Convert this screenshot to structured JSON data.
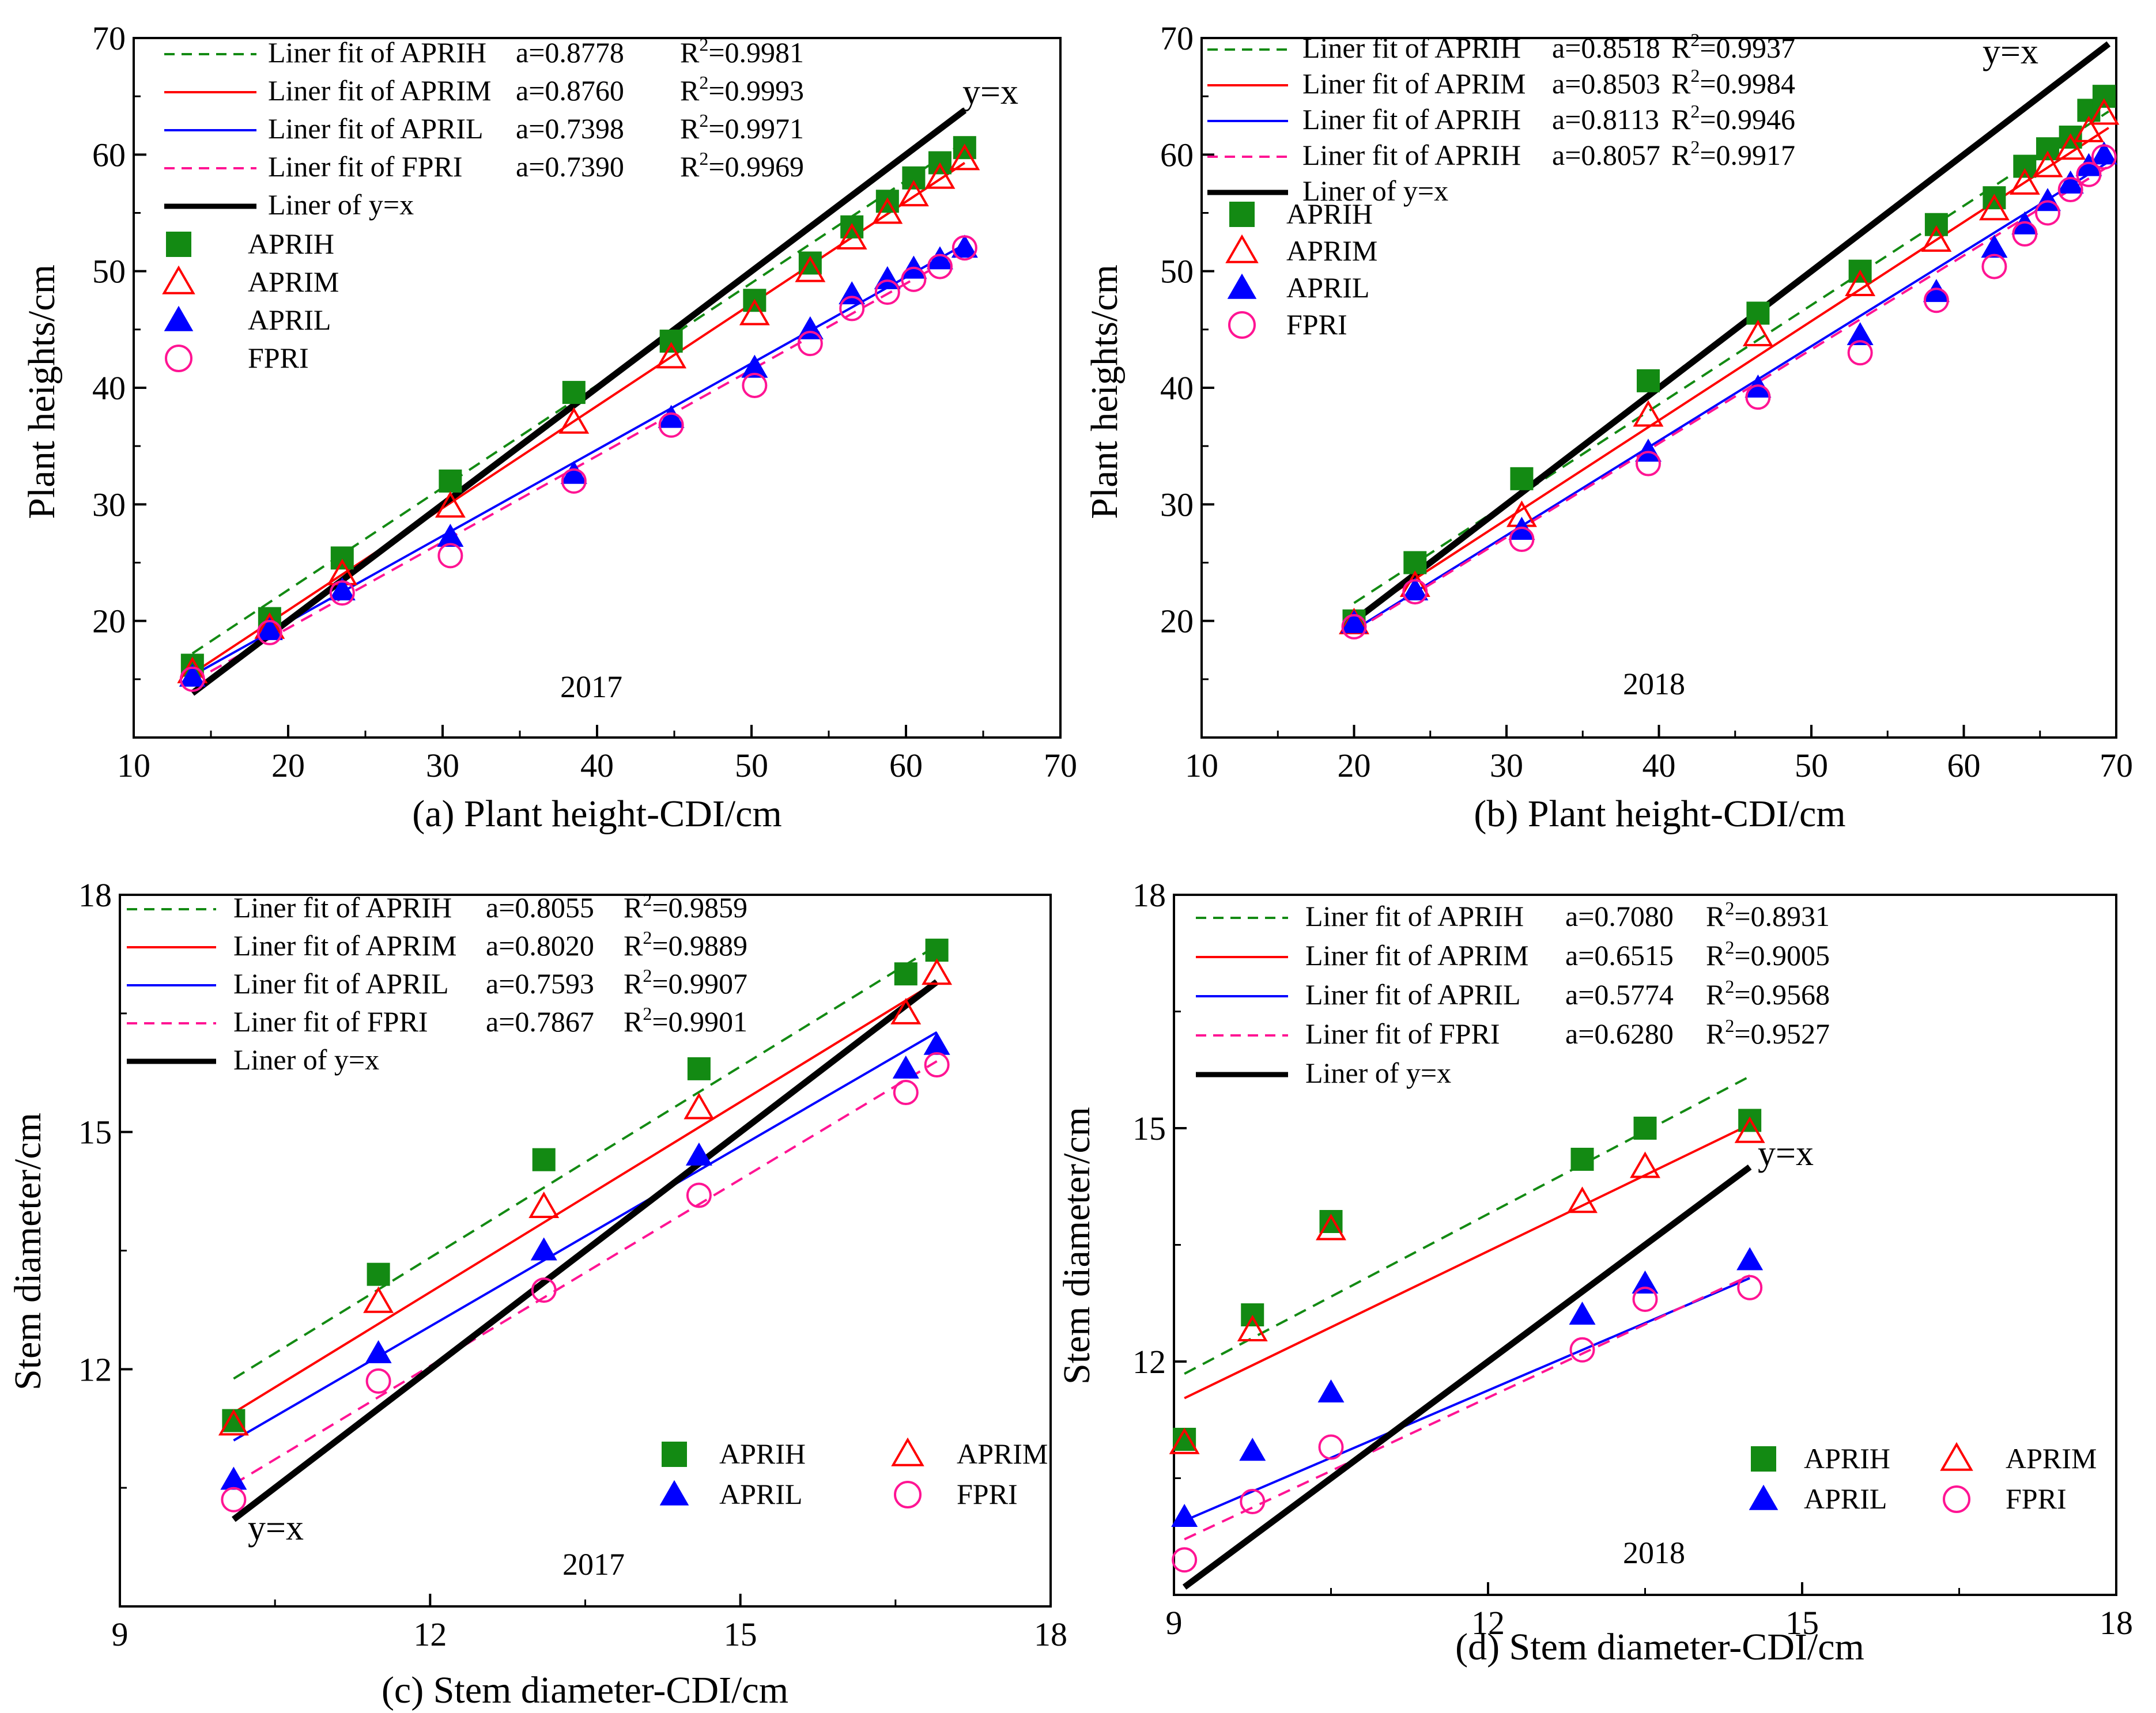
{
  "chart_data": [
    {
      "type": "scatter",
      "panel": "a",
      "caption": "(a) Plant height-CDI/cm",
      "ylabel": "Plant heights/cm",
      "year": "2017",
      "identity_label": "y=x",
      "xlim": [
        10,
        70
      ],
      "ylim": [
        10,
        70
      ],
      "xticks": [
        "10",
        "20",
        "30",
        "40",
        "50",
        "60",
        "70"
      ],
      "yticks": [
        "20",
        "30",
        "40",
        "50",
        "60",
        "70"
      ],
      "x": [
        13.8,
        18.8,
        23.5,
        30.5,
        38.5,
        44.8,
        50.2,
        53.8,
        56.5,
        58.8,
        60.5,
        62.2,
        63.8
      ],
      "series": [
        {
          "name": "APRIH",
          "marker": "square",
          "color": "#138a13",
          "values": [
            16.2,
            20.2,
            25.4,
            32.0,
            39.6,
            44.0,
            47.5,
            50.7,
            53.8,
            56.0,
            58.0,
            59.3,
            60.6
          ]
        },
        {
          "name": "APRIM",
          "marker": "triangle-open",
          "color": "#ff0000",
          "values": [
            15.6,
            19.4,
            24.0,
            29.8,
            37.0,
            42.6,
            46.3,
            50.0,
            52.8,
            55.0,
            56.5,
            58.0,
            59.6
          ]
        },
        {
          "name": "APRIL",
          "marker": "triangle",
          "color": "#0000ff",
          "values": [
            15.2,
            19.2,
            22.6,
            27.2,
            32.6,
            37.4,
            41.7,
            45.0,
            48.0,
            49.3,
            50.2,
            51.0,
            52.0
          ]
        },
        {
          "name": "FPRI",
          "marker": "circle-open",
          "color": "#ff1493",
          "values": [
            15.0,
            19.0,
            22.4,
            25.6,
            32.0,
            36.8,
            40.2,
            43.8,
            46.8,
            48.2,
            49.3,
            50.4,
            52.0
          ]
        }
      ],
      "fits": [
        {
          "label": "Liner fit of APRIH",
          "a": "a=0.8778",
          "r2_value": "=0.9981",
          "slope": 0.8778,
          "intercept": 5.1,
          "x_range": [
            13.8,
            63.8
          ],
          "color": "#138a13",
          "dash": "dash",
          "stroke_style": "thin"
        },
        {
          "label": "Liner fit of APRIM",
          "a": "a=0.8760",
          "r2_value": "=0.9993",
          "slope": 0.876,
          "intercept": 3.4,
          "x_range": [
            13.8,
            63.8
          ],
          "color": "#ff0000",
          "dash": "solid",
          "stroke_style": "thin"
        },
        {
          "label": "Liner fit of APRIL",
          "a": "a=0.7398",
          "r2_value": "=0.9971",
          "slope": 0.7398,
          "intercept": 5.1,
          "x_range": [
            13.8,
            63.8
          ],
          "color": "#0000ff",
          "dash": "solid",
          "stroke_style": "thin"
        },
        {
          "label": "Liner fit of FPRI",
          "a": "a=0.7390",
          "r2_value": "=0.9969",
          "slope": 0.739,
          "intercept": 4.6,
          "x_range": [
            13.8,
            63.8
          ],
          "color": "#ff1493",
          "dash": "dash",
          "stroke_style": "thin"
        },
        {
          "label": "Liner of y=x",
          "a": "",
          "r2_value": "",
          "slope": 1,
          "intercept": 0,
          "x_range": [
            13.8,
            63.8
          ],
          "color": "#000000",
          "dash": "solid",
          "stroke_style": "thick"
        }
      ],
      "legend_layout": "stacked"
    },
    {
      "type": "scatter",
      "panel": "b",
      "caption": "(b) Plant height-CDI/cm",
      "ylabel": "Plant heights/cm",
      "year": "2018",
      "identity_label": "y=x",
      "xlim": [
        10,
        70
      ],
      "ylim": [
        10,
        70
      ],
      "xticks": [
        "10",
        "20",
        "30",
        "40",
        "50",
        "60",
        "70"
      ],
      "yticks": [
        "20",
        "30",
        "40",
        "50",
        "60",
        "70"
      ],
      "x": [
        20.0,
        24.0,
        31.0,
        39.3,
        46.5,
        53.2,
        58.2,
        62.0,
        64.0,
        65.5,
        67.0,
        68.2,
        69.2
      ],
      "series": [
        {
          "name": "APRIH",
          "marker": "square",
          "color": "#138a13",
          "values": [
            20.0,
            25.0,
            32.2,
            40.6,
            46.4,
            50.0,
            54.0,
            56.3,
            59.0,
            60.5,
            61.5,
            63.8,
            65.0
          ]
        },
        {
          "name": "APRIM",
          "marker": "triangle-open",
          "color": "#ff0000",
          "values": [
            19.8,
            23.0,
            29.0,
            37.6,
            44.5,
            48.8,
            52.6,
            55.3,
            57.5,
            59.0,
            60.5,
            62.0,
            63.5
          ]
        },
        {
          "name": "APRIL",
          "marker": "triangle",
          "color": "#0000ff",
          "values": [
            19.8,
            22.6,
            27.8,
            34.5,
            40.0,
            44.5,
            48.2,
            52.0,
            54.0,
            56.0,
            57.5,
            59.0,
            60.0
          ]
        },
        {
          "name": "FPRI",
          "marker": "circle-open",
          "color": "#ff1493",
          "values": [
            19.5,
            22.5,
            27.0,
            33.5,
            39.2,
            43.0,
            47.5,
            50.4,
            53.2,
            55.0,
            57.0,
            58.3,
            59.8
          ]
        }
      ],
      "fits": [
        {
          "label": "Liner fit of APRIH",
          "a": "a=0.8518",
          "r2_value": "=0.9937",
          "slope": 0.8518,
          "intercept": 4.5,
          "x_range": [
            20,
            69.5
          ],
          "color": "#138a13",
          "dash": "dash",
          "stroke_style": "thin"
        },
        {
          "label": "Liner fit of APRIM",
          "a": "a=0.8503",
          "r2_value": "=0.9984",
          "slope": 0.8503,
          "intercept": 3.2,
          "x_range": [
            20,
            69.5
          ],
          "color": "#ff0000",
          "dash": "solid",
          "stroke_style": "thin"
        },
        {
          "label": "Liner fit of APRIH",
          "a": "a=0.8113",
          "r2_value": "=0.9946",
          "slope": 0.8113,
          "intercept": 3.0,
          "x_range": [
            20,
            69.5
          ],
          "color": "#0000ff",
          "dash": "solid",
          "stroke_style": "thin"
        },
        {
          "label": "Liner fit of APRIH",
          "a": "a=0.8057",
          "r2_value": "=0.9917",
          "slope": 0.8057,
          "intercept": 3.0,
          "x_range": [
            20,
            69.5
          ],
          "color": "#ff1493",
          "dash": "dash",
          "stroke_style": "thin"
        },
        {
          "label": "Liner of y=x",
          "a": "",
          "r2_value": "",
          "slope": 1,
          "intercept": 0,
          "x_range": [
            20.5,
            69.5
          ],
          "color": "#000000",
          "dash": "solid",
          "stroke_style": "thick"
        }
      ],
      "legend_layout": "stacked"
    },
    {
      "type": "scatter",
      "panel": "c",
      "caption": "(c) Stem diameter-CDI/cm",
      "ylabel": "Stem diameter/cm",
      "year": "2017",
      "identity_label": "y=x",
      "xlim": [
        9,
        18
      ],
      "ylim": [
        9,
        18
      ],
      "xticks": [
        "9",
        "12",
        "15",
        "18"
      ],
      "yticks": [
        "12",
        "15",
        "18"
      ],
      "x": [
        10.1,
        11.5,
        13.1,
        14.6,
        16.6,
        16.9
      ],
      "series": [
        {
          "name": "APRIH",
          "marker": "square",
          "color": "#138a13",
          "values": [
            11.35,
            13.2,
            14.65,
            15.8,
            17.0,
            17.3
          ]
        },
        {
          "name": "APRIM",
          "marker": "triangle-open",
          "color": "#ff0000",
          "values": [
            11.3,
            12.85,
            14.05,
            15.3,
            16.5,
            17.0
          ]
        },
        {
          "name": "APRIL",
          "marker": "triangle",
          "color": "#0000ff",
          "values": [
            10.6,
            12.2,
            13.5,
            14.7,
            15.8,
            16.1
          ]
        },
        {
          "name": "FPRI",
          "marker": "circle-open",
          "color": "#ff1493",
          "values": [
            10.35,
            11.85,
            13.0,
            14.2,
            15.5,
            15.85
          ]
        }
      ],
      "fits": [
        {
          "label": "Liner fit of APRIH",
          "a": "a=0.8055",
          "r2_value": "=0.9859",
          "slope": 0.8055,
          "intercept": 3.745,
          "x_range": [
            10.1,
            16.9
          ],
          "color": "#138a13",
          "dash": "dash",
          "stroke_style": "thin"
        },
        {
          "label": "Liner fit of APRIM",
          "a": "a=0.8020",
          "r2_value": "=0.9889",
          "slope": 0.802,
          "intercept": 3.35,
          "x_range": [
            10.1,
            16.9
          ],
          "color": "#ff0000",
          "dash": "solid",
          "stroke_style": "thin"
        },
        {
          "label": "Liner fit of APRIL",
          "a": "a=0.7593",
          "r2_value": "=0.9907",
          "slope": 0.7593,
          "intercept": 3.43,
          "x_range": [
            10.1,
            16.9
          ],
          "color": "#0000ff",
          "dash": "solid",
          "stroke_style": "thin"
        },
        {
          "label": "Liner fit of FPRI",
          "a": "a=0.7867",
          "r2_value": "=0.9901",
          "slope": 0.7867,
          "intercept": 2.6,
          "x_range": [
            10.1,
            16.9
          ],
          "color": "#ff1493",
          "dash": "dash",
          "stroke_style": "thin"
        },
        {
          "label": "Liner of y=x",
          "a": "",
          "r2_value": "",
          "slope": 1,
          "intercept": 0,
          "x_range": [
            10.1,
            16.9
          ],
          "color": "#000000",
          "dash": "solid",
          "stroke_style": "thick"
        }
      ],
      "legend_layout": "split"
    },
    {
      "type": "scatter",
      "panel": "d",
      "caption": "(d) Stem diameter-CDI/cm",
      "ylabel": "Stem diameter/cm",
      "year": "2018",
      "identity_label": "y=x",
      "xlim": [
        9,
        18
      ],
      "ylim": [
        9,
        18
      ],
      "xticks": [
        "9",
        "12",
        "15",
        "18"
      ],
      "yticks": [
        "12",
        "15",
        "18"
      ],
      "x": [
        9.1,
        9.75,
        10.5,
        12.9,
        13.5,
        14.5
      ],
      "series": [
        {
          "name": "APRIH",
          "marker": "square",
          "color": "#138a13",
          "values": [
            11.0,
            12.6,
            13.8,
            14.6,
            15.0,
            15.1
          ]
        },
        {
          "name": "APRIM",
          "marker": "triangle-open",
          "color": "#ff0000",
          "values": [
            10.95,
            12.4,
            13.7,
            14.05,
            14.5,
            14.95
          ]
        },
        {
          "name": "APRIL",
          "marker": "triangle",
          "color": "#0000ff",
          "values": [
            10.0,
            10.85,
            11.6,
            12.6,
            13.0,
            13.3
          ]
        },
        {
          "name": "FPRI",
          "marker": "circle-open",
          "color": "#ff1493",
          "values": [
            9.45,
            10.2,
            10.9,
            12.15,
            12.8,
            12.95
          ]
        }
      ],
      "fits": [
        {
          "label": "Liner fit of APRIH",
          "a": "a=0.7080",
          "r2_value": "=0.8931",
          "slope": 0.708,
          "intercept": 5.4,
          "x_range": [
            9.1,
            14.5
          ],
          "color": "#138a13",
          "dash": "dash",
          "stroke_style": "thin"
        },
        {
          "label": "Liner fit of APRIM",
          "a": "a=0.6515",
          "r2_value": "=0.9005",
          "slope": 0.6515,
          "intercept": 5.6,
          "x_range": [
            9.1,
            14.5
          ],
          "color": "#ff0000",
          "dash": "solid",
          "stroke_style": "thin"
        },
        {
          "label": "Liner fit of APRIL",
          "a": "a=0.5774",
          "r2_value": "=0.9568",
          "slope": 0.5774,
          "intercept": 4.7,
          "x_range": [
            9.1,
            14.5
          ],
          "color": "#0000ff",
          "dash": "solid",
          "stroke_style": "thin"
        },
        {
          "label": "Liner fit of FPRI",
          "a": "a=0.6280",
          "r2_value": "=0.9527",
          "slope": 0.628,
          "intercept": 4.0,
          "x_range": [
            9.1,
            14.5
          ],
          "color": "#ff1493",
          "dash": "dash",
          "stroke_style": "thin"
        },
        {
          "label": "Liner of y=x",
          "a": "",
          "r2_value": "",
          "slope": 1,
          "intercept": 0,
          "x_range": [
            9.1,
            14.5
          ],
          "color": "#000000",
          "dash": "solid",
          "stroke_style": "thick"
        }
      ],
      "legend_layout": "split"
    }
  ]
}
